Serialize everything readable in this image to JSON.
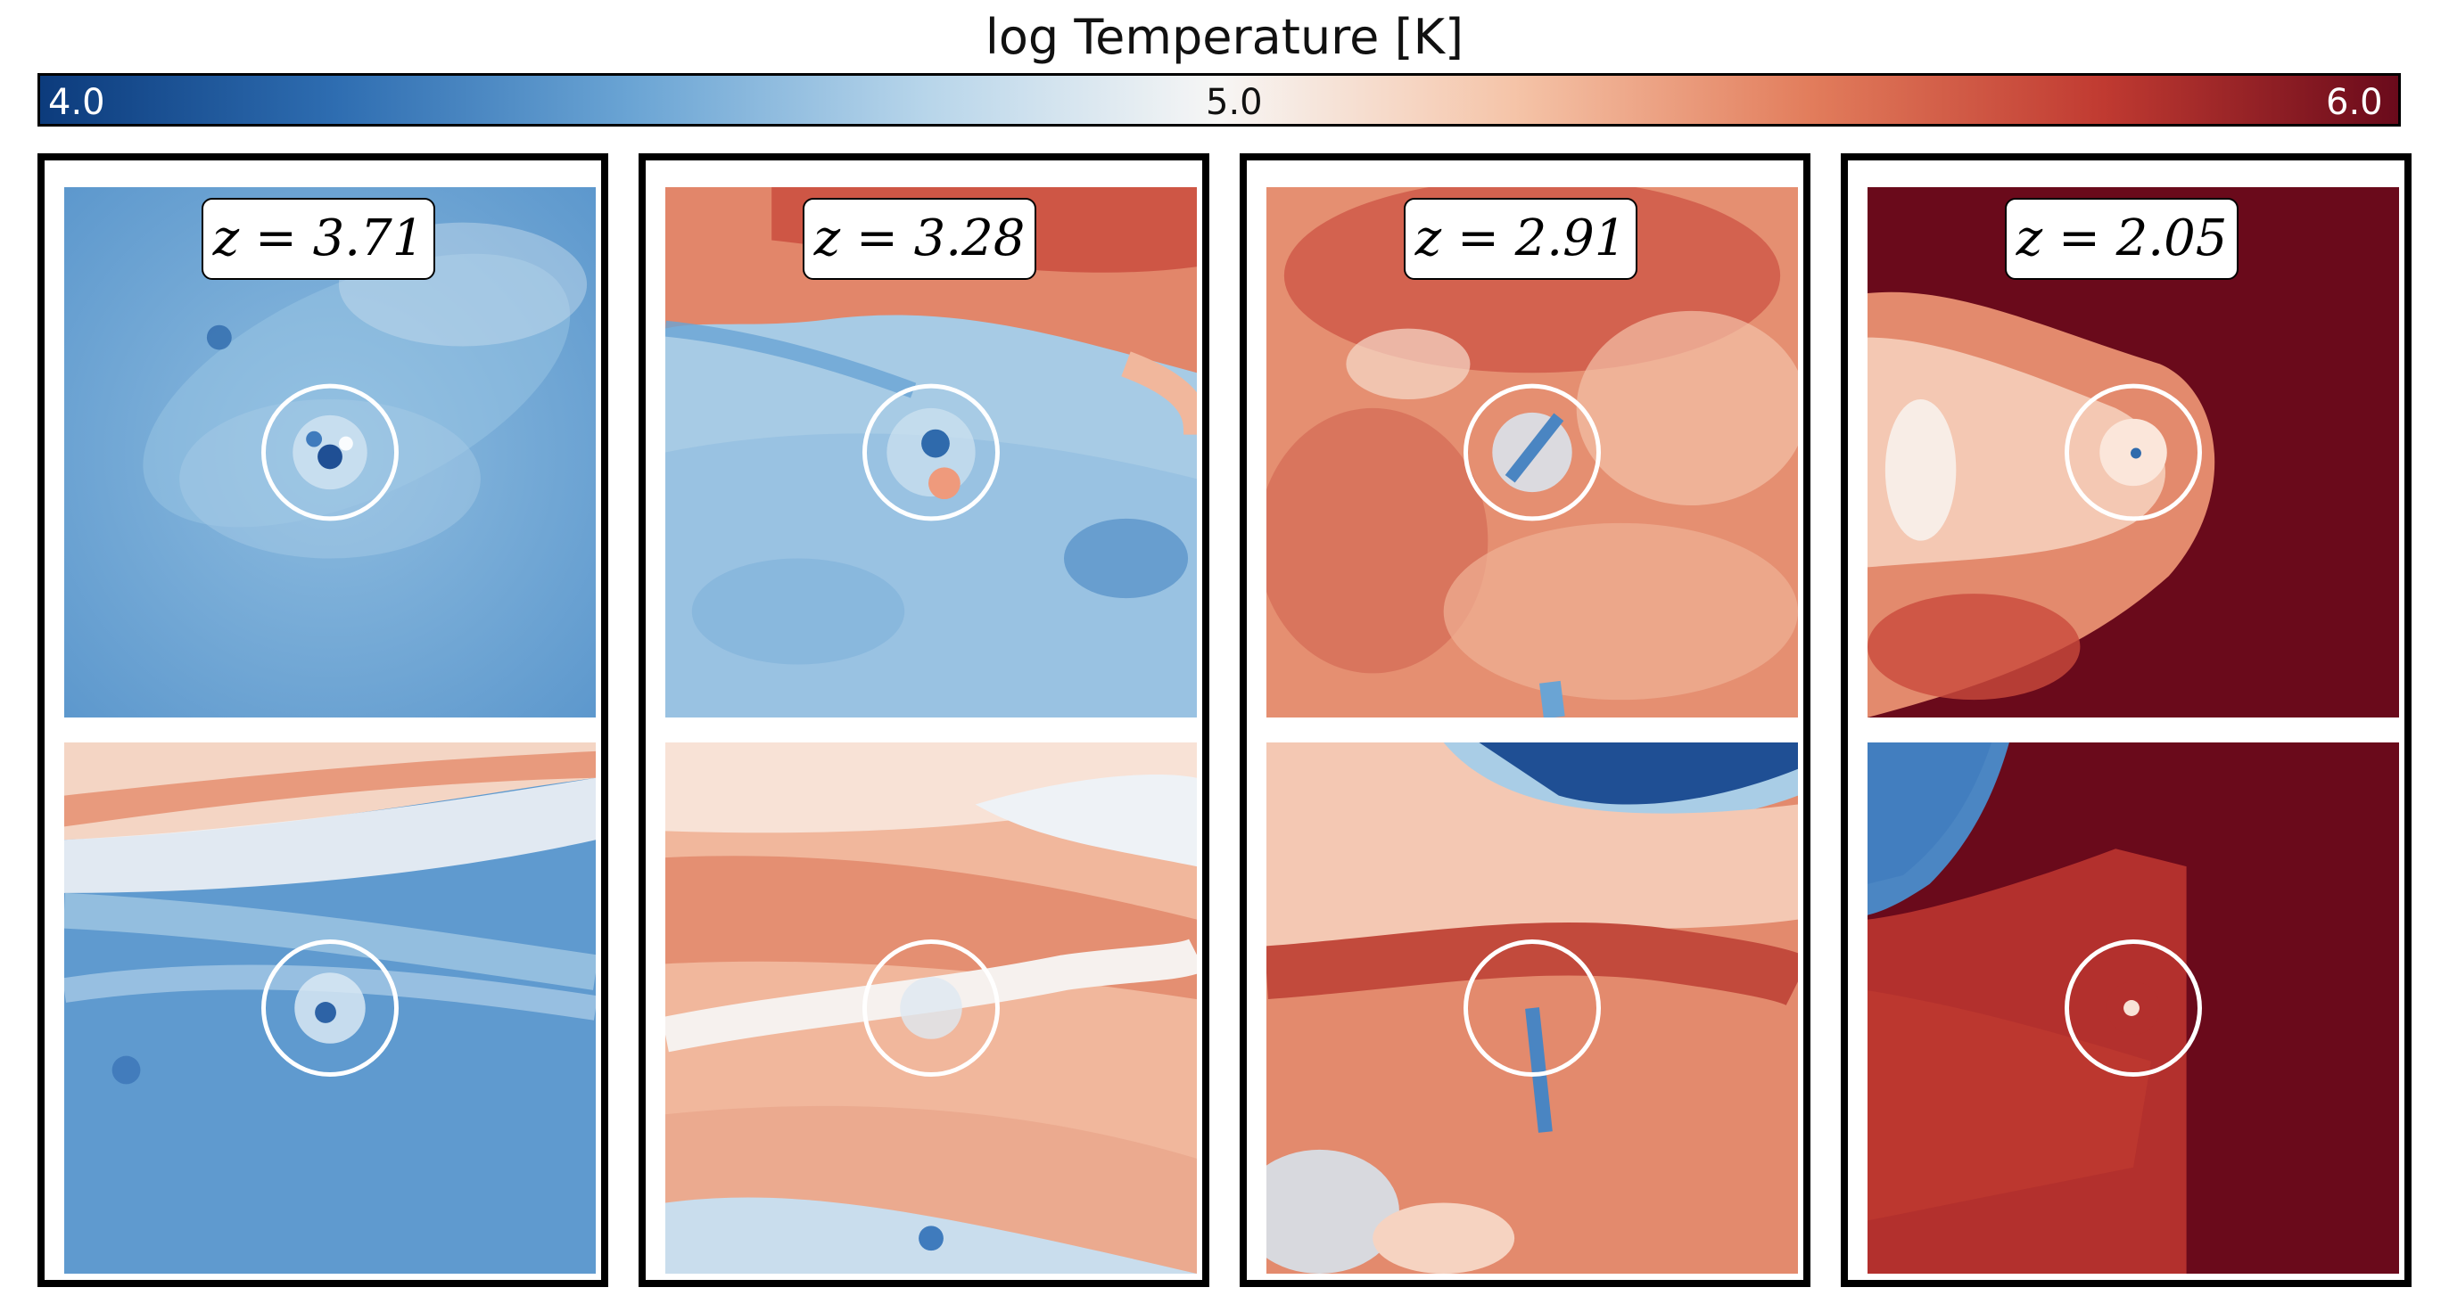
{
  "colorbar": {
    "label": "log Temperature [K]",
    "ticks": [
      "4.0",
      "5.0",
      "6.0"
    ],
    "min": 4.0,
    "max": 6.0,
    "colormap": [
      "#0c3b7c",
      "#2e6db1",
      "#6aa4d4",
      "#b7d5ea",
      "#f7f6f5",
      "#f5c4a8",
      "#e27d5c",
      "#c03a31",
      "#6a0a1b"
    ]
  },
  "chart_data": {
    "type": "heatmap",
    "title": "log Temperature [K]",
    "colorbar_range": [
      4.0,
      6.0
    ],
    "panels": [
      {
        "label": "z = 3.71",
        "redshift": 3.71,
        "views": [
          "top",
          "bottom"
        ]
      },
      {
        "label": "z = 3.28",
        "redshift": 3.28,
        "views": [
          "top",
          "bottom"
        ]
      },
      {
        "label": "z = 2.91",
        "redshift": 2.91,
        "views": [
          "top",
          "bottom"
        ]
      },
      {
        "label": "z = 2.05",
        "redshift": 2.05,
        "views": [
          "top",
          "bottom"
        ]
      }
    ]
  }
}
